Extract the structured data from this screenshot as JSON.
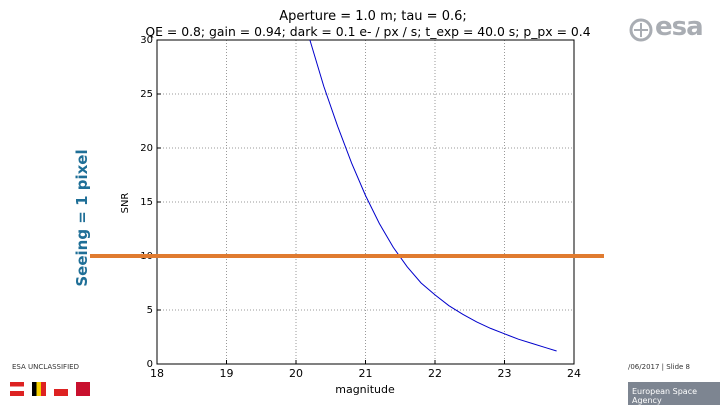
{
  "slide": {
    "side_label": "Seeing = 1 pixel",
    "logo_text": "esa",
    "footer_left": "ESA UNCLASSIFIED",
    "footer_right": "/06/2017 | Slide 8",
    "agency": "European Space Agency",
    "accent_color": "#1f6f97",
    "threshold_color": "#e07b30"
  },
  "chart_data": {
    "type": "line",
    "title": "Aperture = 1.0 m; tau = 0.6;",
    "subtitle": "QE = 0.8; gain = 0.94; dark = 0.1 e- / px / s; t_exp = 40.0 s; p_px = 0.4",
    "xlabel": "magnitude",
    "ylabel": "SNR",
    "xlim": [
      18,
      24
    ],
    "ylim": [
      0,
      30
    ],
    "xticks": [
      "18",
      "19",
      "20",
      "21",
      "22",
      "23",
      "24"
    ],
    "yticks": [
      "0",
      "5",
      "10",
      "15",
      "20",
      "25",
      "30"
    ],
    "grid": true,
    "series": [
      {
        "color": "#0000cc",
        "x": [
          20.2,
          20.4,
          20.6,
          20.8,
          21.0,
          21.2,
          21.4,
          21.6,
          21.8,
          22.0,
          22.2,
          22.4,
          22.6,
          22.8,
          23.0,
          23.2,
          23.4,
          23.6,
          23.75
        ],
        "y": [
          30.0,
          25.7,
          22.0,
          18.6,
          15.6,
          13.0,
          10.8,
          9.0,
          7.5,
          6.4,
          5.4,
          4.6,
          3.9,
          3.3,
          2.8,
          2.3,
          1.9,
          1.5,
          1.2
        ]
      }
    ],
    "threshold": 10
  }
}
